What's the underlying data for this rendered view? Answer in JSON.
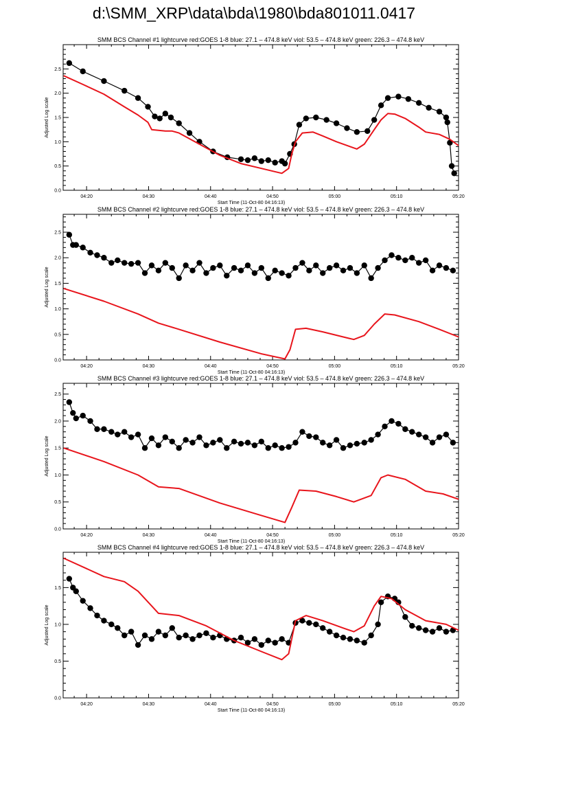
{
  "title": "d:\\SMM_XRP\\data\\bda\\1980\\bda801011.0417",
  "colors": {
    "goes": "#e8141b",
    "bcs": "#000000"
  },
  "chart_data": [
    {
      "type": "line",
      "title": "SMM BCS Channel #1 lightcurve  red:GOES 1-8  blue: 27.1 – 474.8 keV  viol: 53.5 – 474.8 keV  green: 226.3 – 474.8 keV",
      "xlabel": "Start Time (11-Oct-80 04:16:13)",
      "ylabel": "Adjusted Log scale",
      "x_units": "minutes after 04:00",
      "xlim": [
        16.22,
        80
      ],
      "ylim": [
        0,
        3
      ],
      "xticks": [
        20,
        30,
        40,
        50,
        60,
        70,
        80
      ],
      "xtick_labels": [
        "04:20",
        "04:30",
        "04:40",
        "04:50",
        "05:00",
        "05:10",
        "05:20"
      ],
      "yticks": [
        0,
        0.5,
        1,
        1.5,
        2,
        2.5
      ],
      "ytick_labels": [
        "0.0",
        "0.5",
        "1.0",
        "1.5",
        "2.0",
        "2.5"
      ],
      "series": [
        {
          "name": "BCS channel",
          "color": "#000000",
          "marker": "circle",
          "x": [
            17.2,
            19.4,
            22.8,
            26.1,
            28.3,
            29.9,
            31.0,
            31.8,
            32.7,
            33.6,
            34.9,
            36.6,
            38.2,
            40.4,
            42.7,
            44.9,
            46.0,
            47.1,
            48.2,
            49.3,
            50.4,
            51.5,
            52.0,
            52.8,
            53.5,
            54.3,
            55.4,
            57.0,
            58.7,
            60.3,
            62.0,
            63.6,
            65.3,
            66.4,
            67.5,
            68.6,
            70.3,
            71.9,
            73.6,
            75.2,
            76.9,
            78.0,
            78.2,
            78.6,
            78.9,
            79.3
          ],
          "y": [
            2.62,
            2.45,
            2.25,
            2.05,
            1.9,
            1.72,
            1.52,
            1.48,
            1.58,
            1.5,
            1.38,
            1.18,
            1.0,
            0.8,
            0.68,
            0.64,
            0.62,
            0.66,
            0.6,
            0.62,
            0.57,
            0.6,
            0.55,
            0.75,
            0.95,
            1.35,
            1.48,
            1.5,
            1.45,
            1.38,
            1.28,
            1.2,
            1.22,
            1.45,
            1.75,
            1.9,
            1.93,
            1.88,
            1.8,
            1.7,
            1.62,
            1.5,
            1.4,
            0.98,
            0.5,
            0.35
          ]
        },
        {
          "name": "GOES 1-8",
          "color": "#e8141b",
          "marker": "none",
          "x": [
            16.3,
            19.4,
            22.8,
            26.1,
            28.3,
            29.9,
            30.5,
            32.7,
            33.8,
            34.9,
            38.2,
            41.5,
            44.9,
            48.2,
            51.5,
            52.6,
            53.1,
            53.7,
            54.8,
            56.5,
            58.1,
            60.3,
            62.5,
            63.6,
            64.8,
            66.4,
            67.5,
            68.6,
            69.7,
            71.4,
            73.6,
            74.7,
            76.9,
            78.6,
            80.0
          ],
          "y": [
            2.36,
            2.18,
            1.98,
            1.72,
            1.55,
            1.4,
            1.25,
            1.22,
            1.22,
            1.18,
            0.95,
            0.72,
            0.55,
            0.45,
            0.35,
            0.45,
            0.75,
            1.0,
            1.18,
            1.2,
            1.12,
            1.0,
            0.9,
            0.85,
            0.95,
            1.25,
            1.45,
            1.58,
            1.57,
            1.48,
            1.3,
            1.2,
            1.15,
            1.05,
            0.92
          ]
        }
      ]
    },
    {
      "type": "line",
      "title": "SMM BCS Channel #2 lightcurve  red:GOES 1-8  blue: 27.1 – 474.8 keV  viol: 53.5 – 474.8 keV  green: 226.3 – 474.8 keV",
      "xlabel": "Start Time (11-Oct-80 04:16:13)",
      "ylabel": "Adjusted Log scale",
      "x_units": "minutes after 04:00",
      "xlim": [
        16.22,
        80
      ],
      "ylim": [
        0,
        2.85
      ],
      "xticks": [
        20,
        30,
        40,
        50,
        60,
        70,
        80
      ],
      "xtick_labels": [
        "04:20",
        "04:30",
        "04:40",
        "04:50",
        "05:00",
        "05:10",
        "05:20"
      ],
      "yticks": [
        0,
        0.5,
        1,
        1.5,
        2,
        2.5
      ],
      "ytick_labels": [
        "0.0",
        "0.5",
        "1.0",
        "1.5",
        "2.0",
        "2.5"
      ],
      "series": [
        {
          "name": "BCS channel",
          "color": "#000000",
          "marker": "circle",
          "x": [
            17.2,
            17.8,
            18.3,
            19.4,
            20.6,
            21.7,
            22.8,
            24.0,
            25.0,
            26.1,
            27.2,
            28.3,
            29.4,
            30.5,
            31.6,
            32.7,
            33.8,
            34.9,
            36.0,
            37.1,
            38.2,
            39.3,
            40.4,
            41.5,
            42.6,
            43.8,
            44.9,
            46.0,
            47.1,
            48.2,
            49.3,
            50.4,
            51.5,
            52.6,
            53.7,
            54.8,
            55.9,
            57.0,
            58.1,
            59.2,
            60.3,
            61.4,
            62.5,
            63.6,
            64.8,
            65.9,
            67.0,
            68.1,
            69.2,
            70.3,
            71.4,
            72.5,
            73.6,
            74.7,
            75.8,
            76.9,
            78.0,
            79.1
          ],
          "y": [
            2.45,
            2.25,
            2.25,
            2.2,
            2.1,
            2.05,
            2.0,
            1.9,
            1.95,
            1.9,
            1.88,
            1.9,
            1.7,
            1.85,
            1.75,
            1.9,
            1.8,
            1.6,
            1.85,
            1.75,
            1.9,
            1.7,
            1.8,
            1.85,
            1.65,
            1.8,
            1.75,
            1.85,
            1.7,
            1.8,
            1.6,
            1.75,
            1.7,
            1.65,
            1.8,
            1.9,
            1.75,
            1.85,
            1.7,
            1.8,
            1.85,
            1.75,
            1.8,
            1.7,
            1.85,
            1.6,
            1.8,
            1.95,
            2.05,
            2.0,
            1.95,
            2.0,
            1.9,
            1.95,
            1.75,
            1.85,
            1.8,
            1.75
          ]
        },
        {
          "name": "GOES 1-8",
          "color": "#e8141b",
          "marker": "none",
          "x": [
            16.3,
            22.8,
            28.3,
            31.6,
            34.9,
            41.5,
            48.2,
            52.0,
            52.8,
            53.7,
            55.4,
            58.1,
            61.4,
            63.1,
            64.8,
            66.4,
            68.1,
            69.7,
            73.6,
            76.9,
            80.0
          ],
          "y": [
            1.4,
            1.15,
            0.9,
            0.72,
            0.6,
            0.35,
            0.12,
            0.02,
            0.2,
            0.6,
            0.62,
            0.55,
            0.45,
            0.4,
            0.48,
            0.7,
            0.9,
            0.88,
            0.75,
            0.6,
            0.45
          ]
        }
      ]
    },
    {
      "type": "line",
      "title": "SMM BCS Channel #3 lightcurve  red:GOES 1-8  blue: 27.1 – 474.8 keV  viol: 53.5 – 474.8 keV  green: 226.3 – 474.8 keV",
      "xlabel": "Start Time (11-Oct-80 04:16:13)",
      "ylabel": "Adjusted Log scale",
      "x_units": "minutes after 04:00",
      "xlim": [
        16.22,
        80
      ],
      "ylim": [
        0,
        2.7
      ],
      "xticks": [
        20,
        30,
        40,
        50,
        60,
        70,
        80
      ],
      "xtick_labels": [
        "04:20",
        "04:30",
        "04:40",
        "04:50",
        "05:00",
        "05:10",
        "05:20"
      ],
      "yticks": [
        0,
        0.5,
        1,
        1.5,
        2,
        2.5
      ],
      "ytick_labels": [
        "0.0",
        "0.5",
        "1.0",
        "1.5",
        "2.0",
        "2.5"
      ],
      "series": [
        {
          "name": "BCS channel",
          "color": "#000000",
          "marker": "circle",
          "x": [
            17.2,
            17.8,
            18.3,
            19.4,
            20.6,
            21.7,
            22.8,
            24.0,
            25.0,
            26.1,
            27.2,
            28.3,
            29.4,
            30.5,
            31.6,
            32.7,
            33.8,
            34.9,
            36.0,
            37.1,
            38.2,
            39.3,
            40.4,
            41.5,
            42.6,
            43.8,
            44.9,
            46.0,
            47.1,
            48.2,
            49.3,
            50.4,
            51.5,
            52.6,
            53.7,
            54.8,
            55.9,
            57.0,
            58.1,
            59.2,
            60.3,
            61.4,
            62.5,
            63.6,
            64.8,
            65.9,
            67.0,
            68.1,
            69.2,
            70.3,
            71.4,
            72.5,
            73.6,
            74.7,
            75.8,
            76.9,
            78.0,
            79.1
          ],
          "y": [
            2.35,
            2.15,
            2.05,
            2.1,
            2.0,
            1.85,
            1.85,
            1.8,
            1.75,
            1.8,
            1.7,
            1.75,
            1.5,
            1.68,
            1.55,
            1.7,
            1.62,
            1.5,
            1.65,
            1.6,
            1.7,
            1.55,
            1.6,
            1.65,
            1.5,
            1.62,
            1.58,
            1.6,
            1.55,
            1.62,
            1.5,
            1.55,
            1.5,
            1.52,
            1.6,
            1.8,
            1.72,
            1.7,
            1.6,
            1.55,
            1.65,
            1.5,
            1.55,
            1.58,
            1.6,
            1.65,
            1.75,
            1.9,
            2.0,
            1.95,
            1.85,
            1.8,
            1.75,
            1.7,
            1.6,
            1.7,
            1.75,
            1.6
          ]
        },
        {
          "name": "GOES 1-8",
          "color": "#e8141b",
          "marker": "none",
          "x": [
            16.3,
            22.8,
            28.3,
            31.6,
            34.9,
            41.5,
            48.2,
            52.0,
            53.1,
            54.3,
            57.0,
            60.3,
            63.1,
            65.9,
            67.5,
            68.6,
            71.4,
            74.7,
            77.5,
            80.0
          ],
          "y": [
            1.5,
            1.25,
            1.0,
            0.78,
            0.75,
            0.48,
            0.25,
            0.12,
            0.4,
            0.72,
            0.7,
            0.6,
            0.5,
            0.62,
            0.95,
            1.0,
            0.92,
            0.7,
            0.65,
            0.55
          ]
        }
      ]
    },
    {
      "type": "line",
      "title": "SMM BCS Channel #4 lightcurve  red:GOES 1-8  blue: 27.1 – 474.8 keV  viol: 53.5 – 474.8 keV  green: 226.3 – 474.8 keV",
      "xlabel": "Start Time (11-Oct-80 04:16:13)",
      "ylabel": "Adjusted Log scale",
      "x_units": "minutes after 04:00",
      "xlim": [
        16.22,
        80
      ],
      "ylim": [
        0,
        1.98
      ],
      "xticks": [
        20,
        30,
        40,
        50,
        60,
        70,
        80
      ],
      "xtick_labels": [
        "04:20",
        "04:30",
        "04:40",
        "04:50",
        "05:00",
        "05:10",
        "05:20"
      ],
      "yticks": [
        0,
        0.5,
        1,
        1.5
      ],
      "ytick_labels": [
        "0.0",
        "0.5",
        "1.0",
        "1.5"
      ],
      "series": [
        {
          "name": "BCS channel",
          "color": "#000000",
          "marker": "circle",
          "x": [
            17.2,
            17.8,
            18.3,
            19.4,
            20.6,
            21.7,
            22.8,
            24.0,
            25.0,
            26.1,
            27.2,
            28.3,
            29.4,
            30.5,
            31.6,
            32.7,
            33.8,
            34.9,
            36.0,
            37.1,
            38.2,
            39.3,
            40.4,
            41.5,
            42.6,
            43.8,
            44.9,
            46.0,
            47.1,
            48.2,
            49.3,
            50.4,
            51.5,
            52.6,
            53.7,
            54.8,
            55.9,
            57.0,
            58.1,
            59.2,
            60.3,
            61.4,
            62.5,
            63.6,
            64.8,
            65.9,
            67.0,
            67.5,
            68.6,
            69.7,
            70.3,
            71.4,
            72.5,
            73.6,
            74.7,
            75.8,
            76.9,
            78.0,
            79.1
          ],
          "y": [
            1.62,
            1.5,
            1.45,
            1.32,
            1.22,
            1.12,
            1.05,
            1.0,
            0.95,
            0.85,
            0.9,
            0.72,
            0.85,
            0.8,
            0.9,
            0.85,
            0.95,
            0.82,
            0.85,
            0.8,
            0.85,
            0.88,
            0.82,
            0.85,
            0.8,
            0.78,
            0.82,
            0.75,
            0.8,
            0.72,
            0.78,
            0.75,
            0.8,
            0.75,
            1.02,
            1.05,
            1.02,
            1.0,
            0.95,
            0.9,
            0.85,
            0.82,
            0.8,
            0.78,
            0.75,
            0.85,
            1.0,
            1.3,
            1.38,
            1.35,
            1.3,
            1.1,
            0.98,
            0.95,
            0.92,
            0.9,
            0.95,
            0.9,
            0.92
          ]
        },
        {
          "name": "GOES 1-8",
          "color": "#e8141b",
          "marker": "none",
          "x": [
            16.3,
            22.8,
            26.1,
            28.3,
            31.6,
            34.9,
            39.3,
            43.8,
            48.2,
            51.5,
            52.6,
            53.7,
            55.4,
            58.1,
            61.4,
            63.1,
            64.8,
            66.4,
            67.5,
            69.2,
            71.4,
            74.7,
            78.0,
            80.0
          ],
          "y": [
            1.9,
            1.65,
            1.58,
            1.45,
            1.15,
            1.12,
            0.98,
            0.78,
            0.63,
            0.52,
            0.6,
            1.05,
            1.12,
            1.05,
            0.95,
            0.9,
            0.98,
            1.25,
            1.38,
            1.35,
            1.2,
            1.05,
            1.0,
            0.92
          ]
        }
      ]
    }
  ]
}
